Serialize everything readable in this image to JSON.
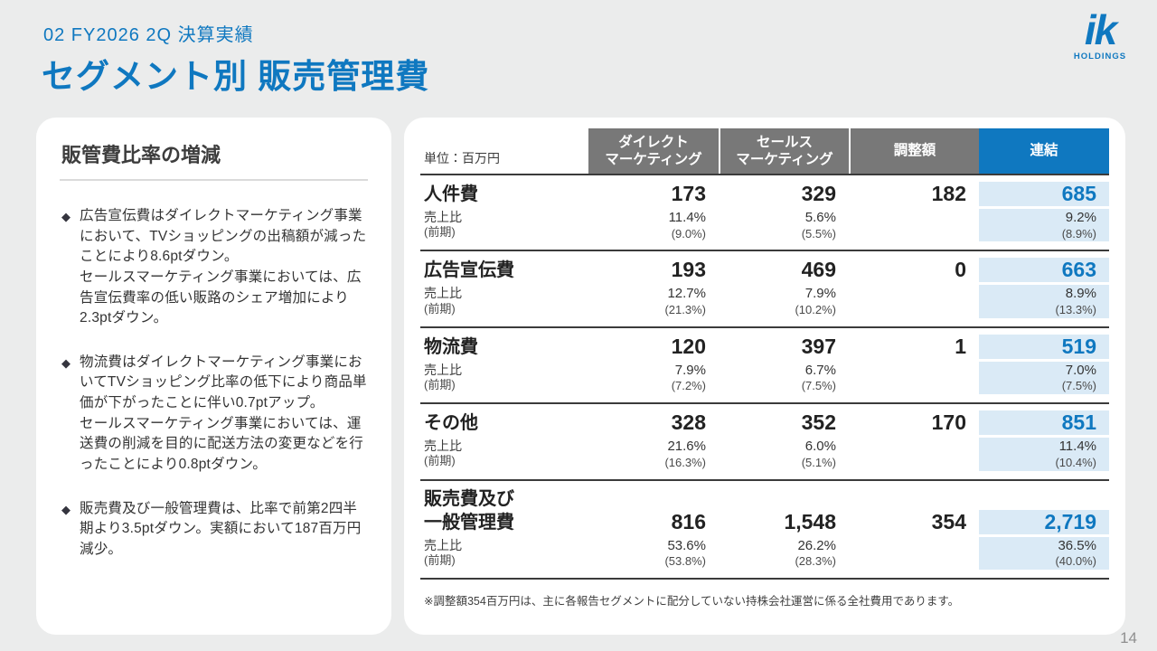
{
  "page": {
    "kicker": "02  FY2026 2Q  決算実績",
    "title": "セグメント別 販売管理費",
    "page_number": "14"
  },
  "logo": {
    "text": "ik",
    "subtext": "HOLDINGS"
  },
  "colors": {
    "accent_blue": "#0f78c0",
    "header_gray": "#787878",
    "consolidated_column_bg": "#daeaf6",
    "background": "#ebecec"
  },
  "left_panel": {
    "heading": "販管費比率の増減",
    "bullet_marker": "◆",
    "bullets": [
      "広告宣伝費はダイレクトマーケティング事業において、TVショッピングの出稿額が減ったことにより8.6ptダウン。\nセールスマーケティング事業においては、広告宣伝費率の低い販路のシェア増加により2.3ptダウン。",
      "物流費はダイレクトマーケティング事業においてTVショッピング比率の低下により商品単価が下がったことに伴い0.7ptアップ。\nセールスマーケティング事業においては、運送費の削減を目的に配送方法の変更などを行ったことにより0.8ptダウン。",
      "販売費及び一般管理費は、比率で前第2四半期より3.5ptダウン。実額において187百万円減少。"
    ]
  },
  "table": {
    "unit_label": "単位：百万円",
    "columns": [
      "ダイレクト\nマーケティング",
      "セールス\nマーケティング",
      "調整額",
      "連結"
    ],
    "sub_labels": {
      "ratio": "売上比",
      "prev": "(前期)"
    },
    "rows": [
      {
        "label": "人件費",
        "values": [
          "173",
          "329",
          "182",
          "685"
        ],
        "ratio": [
          "11.4%",
          "5.6%",
          "",
          "9.2%"
        ],
        "prev": [
          "(9.0%)",
          "(5.5%)",
          "",
          "(8.9%)"
        ]
      },
      {
        "label": "広告宣伝費",
        "values": [
          "193",
          "469",
          "0",
          "663"
        ],
        "ratio": [
          "12.7%",
          "7.9%",
          "",
          "8.9%"
        ],
        "prev": [
          "(21.3%)",
          "(10.2%)",
          "",
          "(13.3%)"
        ]
      },
      {
        "label": "物流費",
        "values": [
          "120",
          "397",
          "1",
          "519"
        ],
        "ratio": [
          "7.9%",
          "6.7%",
          "",
          "7.0%"
        ],
        "prev": [
          "(7.2%)",
          "(7.5%)",
          "",
          "(7.5%)"
        ]
      },
      {
        "label": "その他",
        "values": [
          "328",
          "352",
          "170",
          "851"
        ],
        "ratio": [
          "21.6%",
          "6.0%",
          "",
          "11.4%"
        ],
        "prev": [
          "(16.3%)",
          "(5.1%)",
          "",
          "(10.4%)"
        ]
      },
      {
        "label": "販売費及び\n一般管理費",
        "values": [
          "816",
          "1,548",
          "354",
          "2,719"
        ],
        "ratio": [
          "53.6%",
          "26.2%",
          "",
          "36.5%"
        ],
        "prev": [
          "(53.8%)",
          "(28.3%)",
          "",
          "(40.0%)"
        ]
      }
    ],
    "footnote": "※調整額354百万円は、主に各報告セグメントに配分していない持株会社運営に係る全社費用であります。"
  }
}
